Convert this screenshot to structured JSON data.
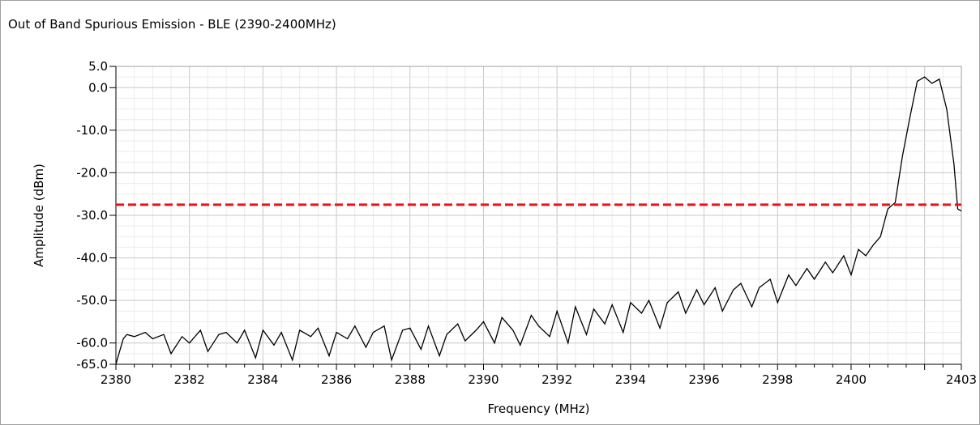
{
  "chart_data": {
    "type": "line",
    "title": "Out of Band Spurious Emission - BLE (2390-2400MHz)",
    "xlabel": "Frequency (MHz)",
    "ylabel": "Amplitude (dBm)",
    "xlim": [
      2380,
      2403
    ],
    "ylim": [
      -65,
      5
    ],
    "grid": true,
    "x_ticks": [
      2380,
      2382,
      2384,
      2386,
      2388,
      2390,
      2392,
      2394,
      2396,
      2398,
      2400,
      2403
    ],
    "x_tick_labels": [
      "2380",
      "2382",
      "2384",
      "2386",
      "2388",
      "2390",
      "2392",
      "2394",
      "2396",
      "2398",
      "2400",
      "2403"
    ],
    "y_ticks": [
      5,
      0,
      -10,
      -20,
      -30,
      -40,
      -50,
      -60,
      -65
    ],
    "y_tick_labels": [
      "5.0",
      "0.0",
      "-10.0",
      "-20.0",
      "-30.0",
      "-40.0",
      "-50.0",
      "-60.0",
      "-65.0"
    ],
    "series": [
      {
        "color": "#000000",
        "style": "solid",
        "x": [
          2380.0,
          2380.1,
          2380.2,
          2380.3,
          2380.5,
          2380.8,
          2381.0,
          2381.3,
          2381.5,
          2381.8,
          2382.0,
          2382.3,
          2382.5,
          2382.8,
          2383.0,
          2383.3,
          2383.5,
          2383.8,
          2384.0,
          2384.3,
          2384.5,
          2384.8,
          2385.0,
          2385.3,
          2385.5,
          2385.8,
          2386.0,
          2386.3,
          2386.5,
          2386.8,
          2387.0,
          2387.3,
          2387.5,
          2387.8,
          2388.0,
          2388.3,
          2388.5,
          2388.8,
          2389.0,
          2389.3,
          2389.5,
          2389.8,
          2390.0,
          2390.3,
          2390.5,
          2390.8,
          2391.0,
          2391.3,
          2391.5,
          2391.8,
          2392.0,
          2392.3,
          2392.5,
          2392.8,
          2393.0,
          2393.3,
          2393.5,
          2393.8,
          2394.0,
          2394.3,
          2394.5,
          2394.8,
          2395.0,
          2395.3,
          2395.5,
          2395.8,
          2396.0,
          2396.3,
          2396.5,
          2396.8,
          2397.0,
          2397.3,
          2397.5,
          2397.8,
          2398.0,
          2398.3,
          2398.5,
          2398.8,
          2399.0,
          2399.3,
          2399.5,
          2399.8,
          2400.0,
          2400.2,
          2400.4,
          2400.6,
          2400.8,
          2401.0,
          2401.2,
          2401.4,
          2401.6,
          2401.8,
          2402.0,
          2402.2,
          2402.4,
          2402.6,
          2402.8,
          2402.9,
          2403.0
        ],
        "y": [
          -65.0,
          -62.0,
          -59.0,
          -58.0,
          -58.5,
          -57.5,
          -59.0,
          -58.0,
          -62.5,
          -58.5,
          -60.0,
          -57.0,
          -62.0,
          -58.0,
          -57.5,
          -60.0,
          -57.0,
          -63.5,
          -57.0,
          -60.5,
          -57.5,
          -64.0,
          -57.0,
          -58.5,
          -56.5,
          -63.0,
          -57.5,
          -59.0,
          -56.0,
          -61.0,
          -57.5,
          -56.0,
          -64.0,
          -57.0,
          -56.5,
          -61.5,
          -56.0,
          -63.0,
          -58.0,
          -55.5,
          -59.5,
          -57.0,
          -55.0,
          -60.0,
          -54.0,
          -57.0,
          -60.5,
          -53.5,
          -56.0,
          -58.5,
          -52.5,
          -60.0,
          -51.5,
          -58.0,
          -52.0,
          -55.5,
          -51.0,
          -57.5,
          -50.5,
          -53.0,
          -50.0,
          -56.5,
          -50.5,
          -48.0,
          -53.0,
          -47.5,
          -51.0,
          -47.0,
          -52.5,
          -47.5,
          -46.0,
          -51.5,
          -47.0,
          -45.0,
          -50.5,
          -44.0,
          -46.5,
          -42.5,
          -45.0,
          -41.0,
          -43.5,
          -39.5,
          -44.0,
          -38.0,
          -39.5,
          -37.0,
          -35.0,
          -28.5,
          -27.0,
          -16.0,
          -7.0,
          1.5,
          2.5,
          1.0,
          2.0,
          -5.0,
          -18.0,
          -28.5,
          -29.0
        ]
      },
      {
        "color": "#e8161b",
        "style": "dashed",
        "x": [
          2380,
          2403
        ],
        "y": [
          -27.5,
          -27.5
        ]
      }
    ]
  }
}
